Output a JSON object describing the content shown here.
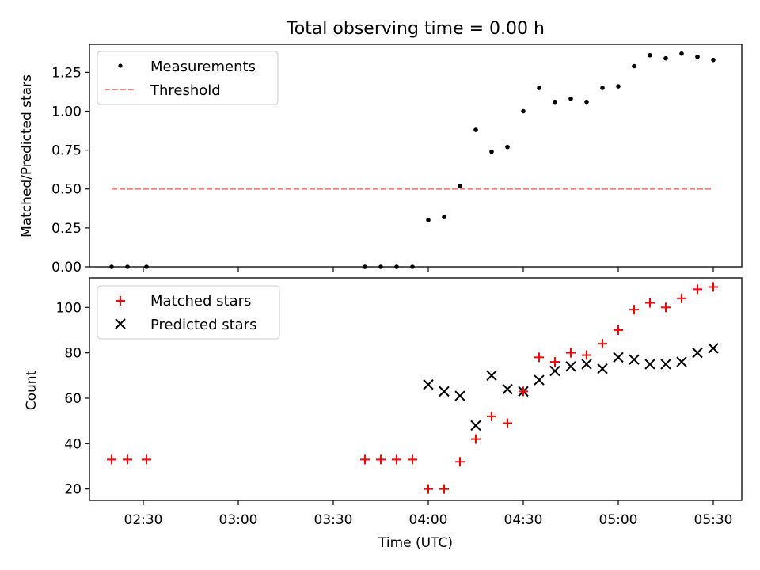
{
  "chart_data": [
    {
      "type": "scatter",
      "title": "Total observing time = 0.00 h",
      "xlabel": "",
      "ylabel": "Matched/Predicted stars",
      "xlim": [
        "02:13",
        "05:39"
      ],
      "ylim": [
        0,
        1.43
      ],
      "yticks": [
        "0.00",
        "0.25",
        "0.50",
        "0.75",
        "1.00",
        "1.25"
      ],
      "grid": false,
      "legend_position": "upper-left",
      "series": [
        {
          "name": "Measurements",
          "type": "scatter",
          "color": "#000000",
          "x": [
            "02:20",
            "02:25",
            "02:31",
            "03:40",
            "03:45",
            "03:50",
            "03:55",
            "04:00",
            "04:05",
            "04:10",
            "04:15",
            "04:20",
            "04:25",
            "04:30",
            "04:35",
            "04:40",
            "04:45",
            "04:50",
            "04:55",
            "05:00",
            "05:05",
            "05:10",
            "05:15",
            "05:20",
            "05:25",
            "05:30"
          ],
          "y": [
            0.0,
            0.0,
            0.0,
            0.0,
            0.0,
            0.0,
            0.0,
            0.3,
            0.32,
            0.52,
            0.88,
            0.74,
            0.77,
            1.0,
            1.15,
            1.06,
            1.08,
            1.06,
            1.15,
            1.16,
            1.29,
            1.36,
            1.34,
            1.37,
            1.35,
            1.33
          ]
        },
        {
          "name": "Threshold",
          "type": "line",
          "style": "dashed",
          "color": "#ff7f7f",
          "x": [
            "02:20",
            "05:30"
          ],
          "y": [
            0.5,
            0.5
          ]
        }
      ]
    },
    {
      "type": "scatter",
      "title": "",
      "xlabel": "Time (UTC)",
      "ylabel": "Count",
      "xlim": [
        "02:13",
        "05:39"
      ],
      "ylim": [
        15,
        113
      ],
      "yticks": [
        "20",
        "40",
        "60",
        "80",
        "100"
      ],
      "xticks": [
        "02:30",
        "03:00",
        "03:30",
        "04:00",
        "04:30",
        "05:00",
        "05:30"
      ],
      "grid": false,
      "legend_position": "upper-left",
      "series": [
        {
          "name": "Matched stars",
          "marker": "plus",
          "color": "#ff0000",
          "x": [
            "02:20",
            "02:25",
            "02:31",
            "03:40",
            "03:45",
            "03:50",
            "03:55",
            "04:00",
            "04:05",
            "04:10",
            "04:15",
            "04:20",
            "04:25",
            "04:30",
            "04:35",
            "04:40",
            "04:45",
            "04:50",
            "04:55",
            "05:00",
            "05:05",
            "05:10",
            "05:15",
            "05:20",
            "05:25",
            "05:30"
          ],
          "y": [
            33,
            33,
            33,
            33,
            33,
            33,
            33,
            20,
            20,
            32,
            42,
            52,
            49,
            63,
            78,
            76,
            80,
            79,
            84,
            90,
            99,
            102,
            100,
            104,
            108,
            109
          ]
        },
        {
          "name": "Predicted stars",
          "marker": "x",
          "color": "#000000",
          "x": [
            "04:00",
            "04:05",
            "04:10",
            "04:15",
            "04:20",
            "04:25",
            "04:30",
            "04:35",
            "04:40",
            "04:45",
            "04:50",
            "04:55",
            "05:00",
            "05:05",
            "05:10",
            "05:15",
            "05:20",
            "05:25",
            "05:30"
          ],
          "y": [
            66,
            63,
            61,
            48,
            70,
            64,
            63,
            68,
            72,
            74,
            75,
            73,
            78,
            77,
            75,
            75,
            76,
            80,
            82
          ]
        }
      ]
    }
  ]
}
